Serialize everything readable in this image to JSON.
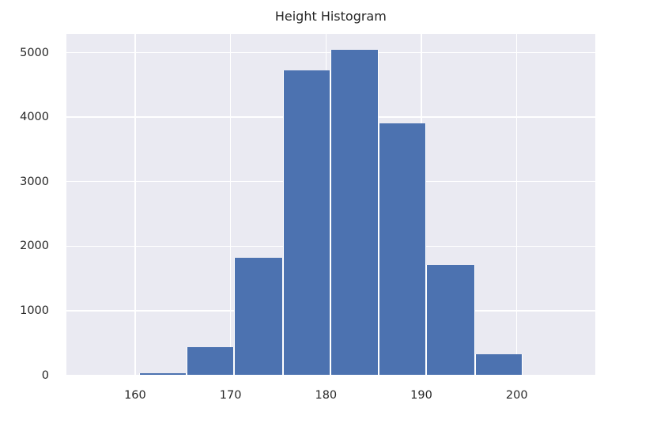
{
  "chart_data": {
    "type": "bar",
    "subtype": "histogram",
    "title": "Height Histogram",
    "xlabel": "",
    "ylabel": "",
    "bin_edges": [
      155.4,
      160.4,
      165.4,
      170.4,
      175.5,
      180.5,
      185.5,
      190.5,
      195.6,
      200.6,
      205.6
    ],
    "counts": [
      5,
      30,
      435,
      1820,
      4720,
      5040,
      3900,
      1710,
      320,
      10
    ],
    "xticks": [
      160,
      170,
      180,
      190,
      200
    ],
    "yticks": [
      0,
      1000,
      2000,
      3000,
      4000,
      5000
    ],
    "xlim": [
      152.8,
      208.2
    ],
    "ylim": [
      0,
      5285
    ],
    "legend": "none",
    "grid": true,
    "bar_color": "#4C72B0",
    "bar_edge_color": "#FFFFFF",
    "plot_bg_color": "#EAEAF2",
    "grid_color": "#FFFFFF",
    "figure_bg_color": "#FFFFFF",
    "text_color": "#262626"
  }
}
